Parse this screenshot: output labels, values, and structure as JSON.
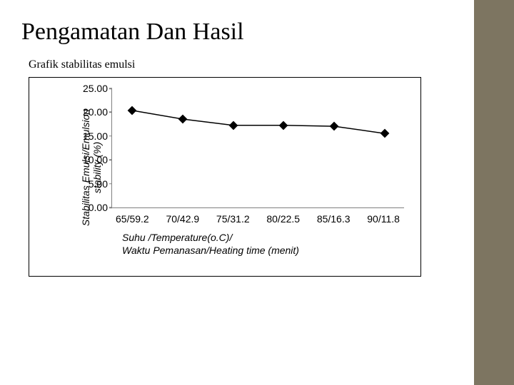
{
  "sidebar_color": "#7d7561",
  "title": "Pengamatan Dan Hasil",
  "subtitle": "Grafik stabilitas emulsi",
  "chart": {
    "type": "line",
    "yaxis_label_line1": "Stabilitas Emulsi/Emulsion",
    "yaxis_label_line2": "stability (%)",
    "xaxis_label_line1": "Suhu /Temperature(o.C)/",
    "xaxis_label_line2": "Waktu Pemanasan/Heating time (menit)",
    "ylim": [
      0,
      25
    ],
    "ytick_step": 5,
    "yticks": [
      "0.00",
      "5.00",
      "10.00",
      "15.00",
      "20.00",
      "25.00"
    ],
    "xticks": [
      "65/59.2",
      "70/42.9",
      "75/31.2",
      "80/22.5",
      "85/16.3",
      "90/11.8"
    ],
    "values": [
      20.4,
      18.6,
      17.3,
      17.3,
      17.1,
      15.6
    ],
    "marker_style": "diamond",
    "marker_color": "#000000",
    "line_color": "#000000",
    "line_width": 1.5,
    "axis_color": "#808080",
    "background_color": "#ffffff",
    "label_fontsize": 14,
    "tick_fontsize": 14,
    "label_fontstyle": "italic"
  }
}
